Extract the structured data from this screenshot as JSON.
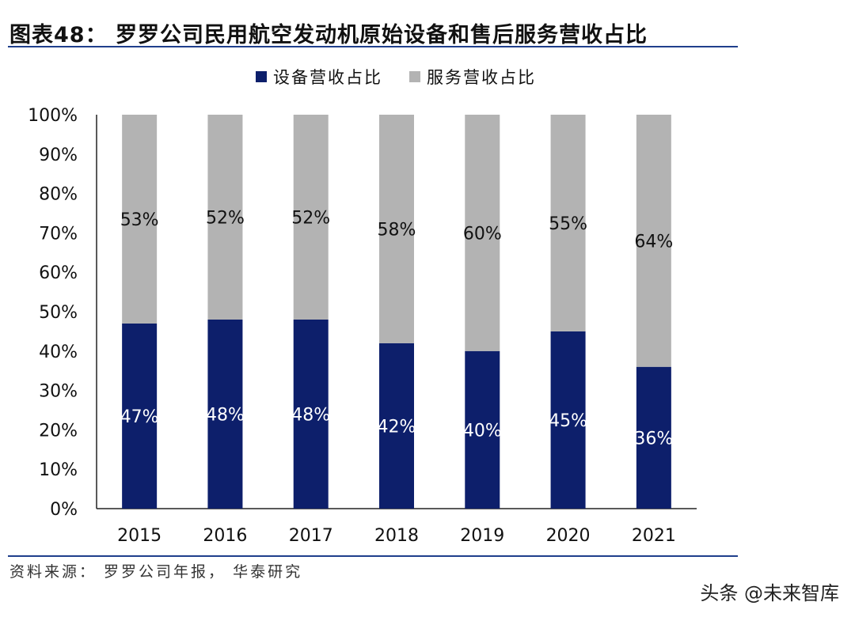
{
  "title": "图表48： 罗罗公司民用航空发动机原始设备和售后服务营收占比",
  "source": "资料来源： 罗罗公司年报， 华泰研究",
  "watermark": "头条 @未来智库",
  "colors": {
    "equipment": "#0d1f6b",
    "service": "#b3b3b3",
    "rule": "#1f3f8c"
  },
  "chart_data": {
    "type": "bar",
    "stacked": true,
    "categories": [
      "2015",
      "2016",
      "2017",
      "2018",
      "2019",
      "2020",
      "2021"
    ],
    "series": [
      {
        "name": "设备营收占比",
        "values": [
          47,
          48,
          48,
          42,
          40,
          45,
          36
        ],
        "labels": [
          "47%",
          "48%",
          "48%",
          "42%",
          "40%",
          "45%",
          "36%"
        ]
      },
      {
        "name": "服务营收占比",
        "values": [
          53,
          52,
          52,
          58,
          60,
          55,
          64
        ],
        "labels": [
          "53%",
          "52%",
          "52%",
          "58%",
          "60%",
          "55%",
          "64%"
        ]
      }
    ],
    "yticks": [
      "0%",
      "10%",
      "20%",
      "30%",
      "40%",
      "50%",
      "60%",
      "70%",
      "80%",
      "90%",
      "100%"
    ],
    "ylim": [
      0,
      100
    ],
    "grid": false,
    "legend": "top-center"
  }
}
